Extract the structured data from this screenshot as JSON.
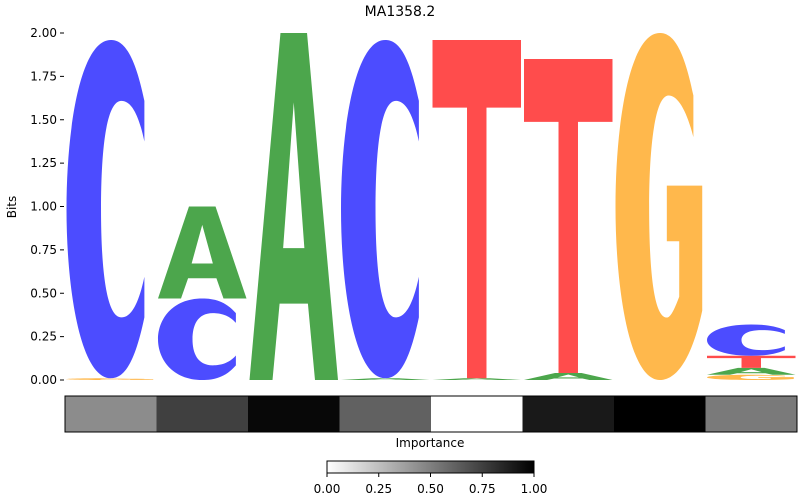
{
  "chart_data": {
    "type": "sequence-logo",
    "title": "MA1358.2",
    "ylabel": "Bits",
    "ylim": [
      0,
      2.0
    ],
    "yticks": [
      "0.00",
      "0.25",
      "0.50",
      "0.75",
      "1.00",
      "1.25",
      "1.50",
      "1.75",
      "2.00"
    ],
    "letter_colors": {
      "A": "#4ca64c",
      "C": "#4c4cff",
      "G": "#ffb84c",
      "T": "#ff4c4c"
    },
    "positions": [
      {
        "stack": [
          {
            "letter": "G",
            "bits": 0.01
          },
          {
            "letter": "C",
            "bits": 1.95
          }
        ]
      },
      {
        "stack": [
          {
            "letter": "C",
            "bits": 0.47
          },
          {
            "letter": "A",
            "bits": 0.53
          }
        ]
      },
      {
        "stack": [
          {
            "letter": "A",
            "bits": 2.0
          }
        ]
      },
      {
        "stack": [
          {
            "letter": "A",
            "bits": 0.01
          },
          {
            "letter": "C",
            "bits": 1.95
          }
        ]
      },
      {
        "stack": [
          {
            "letter": "A",
            "bits": 0.01
          },
          {
            "letter": "T",
            "bits": 1.95
          }
        ]
      },
      {
        "stack": [
          {
            "letter": "A",
            "bits": 0.04
          },
          {
            "letter": "T",
            "bits": 1.81
          }
        ]
      },
      {
        "stack": [
          {
            "letter": "G",
            "bits": 2.0
          }
        ]
      },
      {
        "stack": [
          {
            "letter": "G",
            "bits": 0.03
          },
          {
            "letter": "A",
            "bits": 0.04
          },
          {
            "letter": "T",
            "bits": 0.07
          },
          {
            "letter": "C",
            "bits": 0.18
          }
        ]
      }
    ],
    "importance_label": "Importance",
    "importance": [
      0.45,
      0.75,
      0.97,
      0.62,
      0.0,
      0.9,
      1.0,
      0.52
    ],
    "colorbar": {
      "range": [
        0.0,
        1.0
      ],
      "ticks": [
        "0.00",
        "0.25",
        "0.50",
        "0.75",
        "1.00"
      ]
    }
  }
}
